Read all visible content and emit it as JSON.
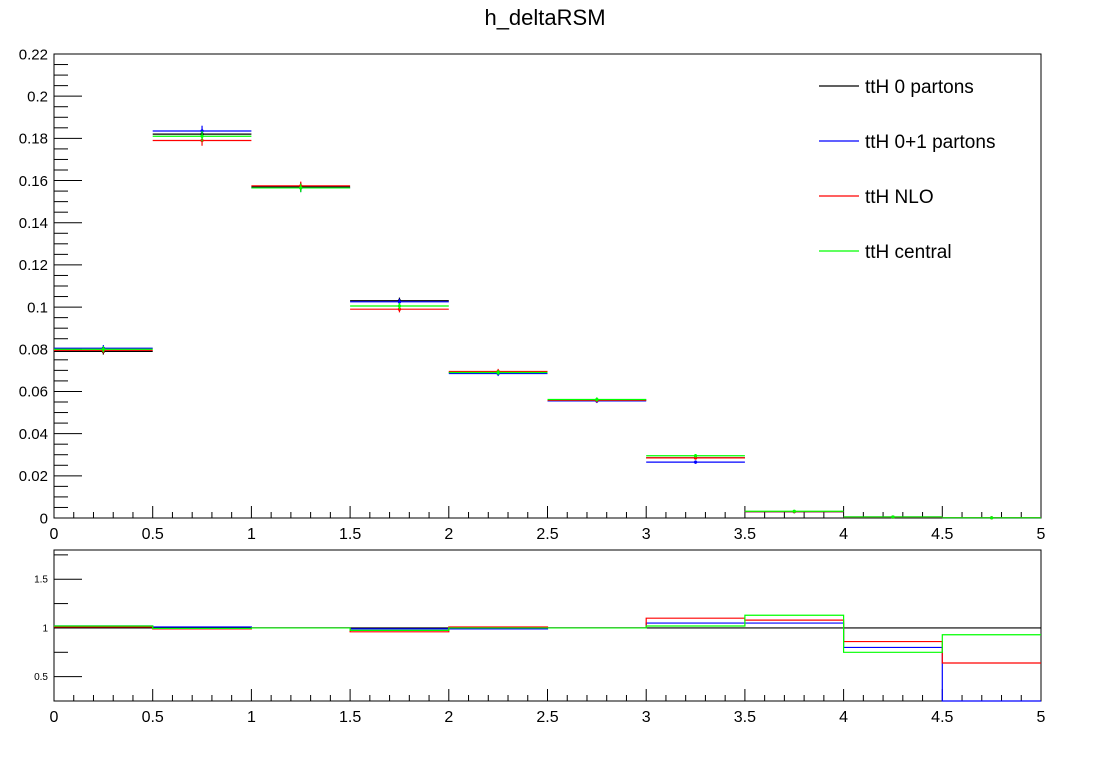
{
  "chart_data": [
    {
      "type": "histogram",
      "title": "h_deltaRSM",
      "xlabel": "",
      "ylabel": "",
      "xlim": [
        0,
        5
      ],
      "ylim": [
        0,
        0.22
      ],
      "bin_edges": [
        0,
        0.5,
        1,
        1.5,
        2,
        2.5,
        3,
        3.5,
        4,
        4.5,
        5
      ],
      "xticks": [
        "0",
        "0.5",
        "1",
        "1.5",
        "2",
        "2.5",
        "3",
        "3.5",
        "4",
        "4.5",
        "5"
      ],
      "yticks": [
        "0",
        "0.02",
        "0.04",
        "0.06",
        "0.08",
        "0.1",
        "0.12",
        "0.14",
        "0.16",
        "0.18",
        "0.2",
        "0.22"
      ],
      "legend_position": "top-right",
      "series": [
        {
          "name": "ttH 0 partons",
          "color": "#000000",
          "values": [
            0.079,
            0.182,
            0.157,
            0.103,
            0.069,
            0.056,
            0.0285,
            0.003,
            0.0005,
            0.0001
          ],
          "errors": [
            0.0015,
            0.0025,
            0.002,
            0.0015,
            0.0012,
            0.001,
            0.0008,
            0.0003,
            0.0002,
            0.0001
          ]
        },
        {
          "name": "ttH 0+1 partons",
          "color": "#0000ff",
          "values": [
            0.0805,
            0.1835,
            0.1565,
            0.1025,
            0.0685,
            0.0555,
            0.0265,
            0.003,
            0.0004,
            0.0
          ],
          "errors": [
            0.0015,
            0.0025,
            0.002,
            0.0015,
            0.0012,
            0.001,
            0.0008,
            0.0003,
            0.0002,
            0.0
          ]
        },
        {
          "name": "ttH NLO",
          "color": "#ff0000",
          "values": [
            0.0795,
            0.179,
            0.1575,
            0.099,
            0.0695,
            0.0558,
            0.0285,
            0.003,
            0.0004,
            0.0001
          ],
          "errors": [
            0.0015,
            0.0025,
            0.002,
            0.0015,
            0.0012,
            0.001,
            0.0008,
            0.0003,
            0.0002,
            0.0001
          ]
        },
        {
          "name": "ttH central",
          "color": "#00ff00",
          "values": [
            0.08,
            0.181,
            0.1565,
            0.1005,
            0.069,
            0.0562,
            0.0295,
            0.0032,
            0.0005,
            0.0001
          ],
          "errors": [
            0.0015,
            0.0025,
            0.002,
            0.0015,
            0.0012,
            0.001,
            0.0008,
            0.0003,
            0.0002,
            0.0001
          ]
        }
      ]
    },
    {
      "type": "histogram",
      "title": "",
      "xlabel": "",
      "ylabel": "",
      "xlim": [
        0,
        5
      ],
      "ylim": [
        0.25,
        1.8
      ],
      "bin_edges": [
        0,
        0.5,
        1,
        1.5,
        2,
        2.5,
        3,
        3.5,
        4,
        4.5,
        5
      ],
      "xticks": [
        "0",
        "0.5",
        "1",
        "1.5",
        "2",
        "2.5",
        "3",
        "3.5",
        "4",
        "4.5",
        "5"
      ],
      "yticks": [
        "0.5",
        "1",
        "1.5"
      ],
      "series": [
        {
          "name": "ttH 0 partons",
          "color": "#000000",
          "values": [
            1,
            1,
            1,
            1,
            1,
            1,
            1,
            1,
            1,
            1
          ]
        },
        {
          "name": "ttH 0+1 partons",
          "color": "#0000ff",
          "values": [
            1.02,
            1.01,
            1.0,
            0.99,
            0.99,
            1.0,
            1.05,
            1.05,
            0.8,
            0.0
          ]
        },
        {
          "name": "ttH NLO",
          "color": "#ff0000",
          "values": [
            1.01,
            0.99,
            1.0,
            0.96,
            1.01,
            1.0,
            1.1,
            1.08,
            0.86,
            0.64
          ]
        },
        {
          "name": "ttH central",
          "color": "#00ff00",
          "values": [
            1.02,
            0.995,
            1.0,
            0.975,
            1.0,
            1.0,
            1.02,
            1.13,
            0.75,
            0.93
          ]
        }
      ]
    }
  ]
}
